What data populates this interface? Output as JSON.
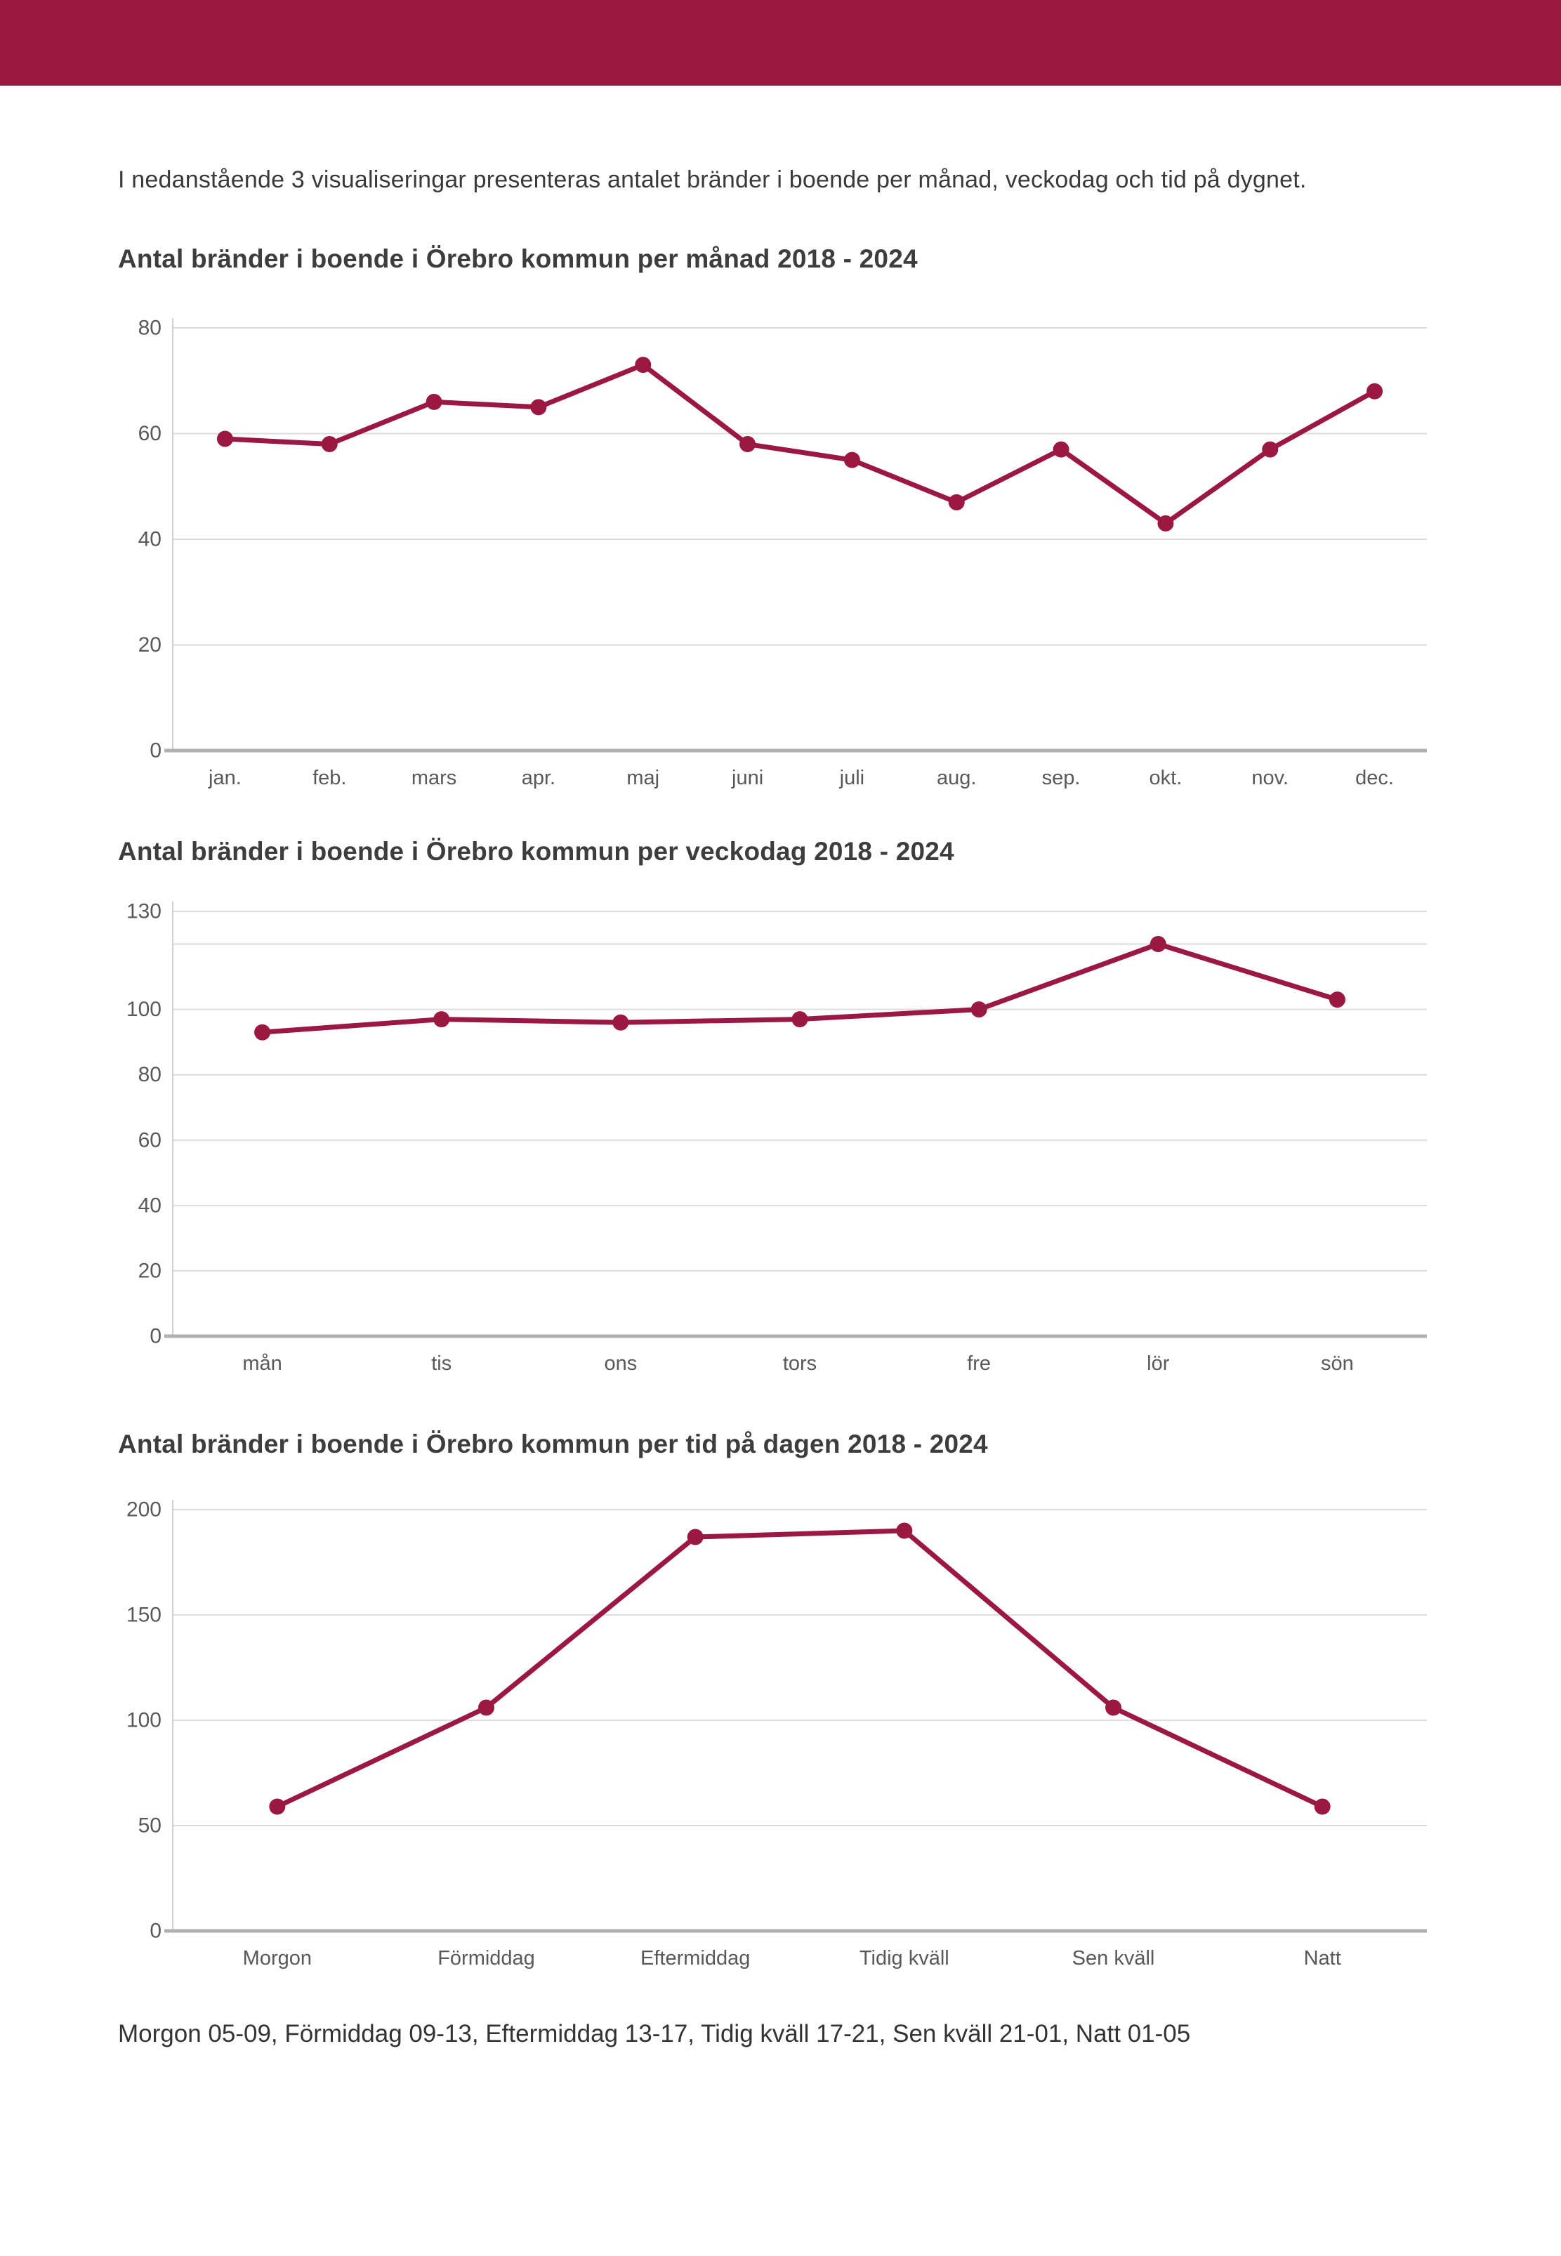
{
  "page": {
    "intro": "I nedanstående 3 visualiseringar presenteras antalet bränder i boende per månad, veckodag och tid på dygnet.",
    "caption": "Morgon 05-09, Förmiddag 09-13, Eftermiddag 13-17, Tidig kväll 17-21, Sen kväll 21-01, Natt 01-05"
  },
  "colors": {
    "header": "#9b1843",
    "line": "#9b1843",
    "marker": "#9b1843",
    "grid": "#dcdcdc",
    "plot_border": "#d0d0d0",
    "axis": "#b0b0b0",
    "tick_text": "#595959",
    "title_text": "#3d3d3d"
  },
  "chart_data": [
    {
      "type": "line",
      "title": "Antal bränder i boende i Örebro kommun per månad 2018 - 2024",
      "categories": [
        "jan.",
        "feb.",
        "mars",
        "apr.",
        "maj",
        "juni",
        "juli",
        "aug.",
        "sep.",
        "okt.",
        "nov.",
        "dec."
      ],
      "values": [
        59,
        58,
        66,
        65,
        73,
        58,
        55,
        47,
        57,
        43,
        57,
        68
      ],
      "xlabel": "",
      "ylabel": "",
      "ylim": [
        0,
        80
      ],
      "yticks": [
        80,
        60,
        40,
        20,
        0
      ],
      "gridline_values": [
        80,
        60,
        40,
        20
      ],
      "grid": true,
      "legend": "none"
    },
    {
      "type": "line",
      "title": "Antal bränder i boende i Örebro kommun per veckodag 2018 - 2024",
      "categories": [
        "mån",
        "tis",
        "ons",
        "tors",
        "fre",
        "lör",
        "sön"
      ],
      "values": [
        93,
        97,
        96,
        97,
        100,
        120,
        103
      ],
      "xlabel": "",
      "ylabel": "",
      "ylim": [
        0,
        130
      ],
      "yticks": [
        130,
        100,
        80,
        60,
        40,
        20,
        0
      ],
      "gridline_values": [
        130,
        120,
        100,
        80,
        60,
        40,
        20
      ],
      "grid": true,
      "legend": "none"
    },
    {
      "type": "line",
      "title": "Antal bränder i boende i Örebro kommun per tid på dagen 2018 - 2024",
      "categories": [
        "Morgon",
        "Förmiddag",
        "Eftermiddag",
        "Tidig kväll",
        "Sen kväll",
        "Natt"
      ],
      "values": [
        59,
        106,
        187,
        190,
        106,
        59
      ],
      "xlabel": "",
      "ylabel": "",
      "ylim": [
        0,
        200
      ],
      "yticks": [
        200,
        150,
        100,
        50,
        0
      ],
      "gridline_values": [
        200,
        150,
        100,
        50
      ],
      "grid": true,
      "legend": "none"
    }
  ]
}
